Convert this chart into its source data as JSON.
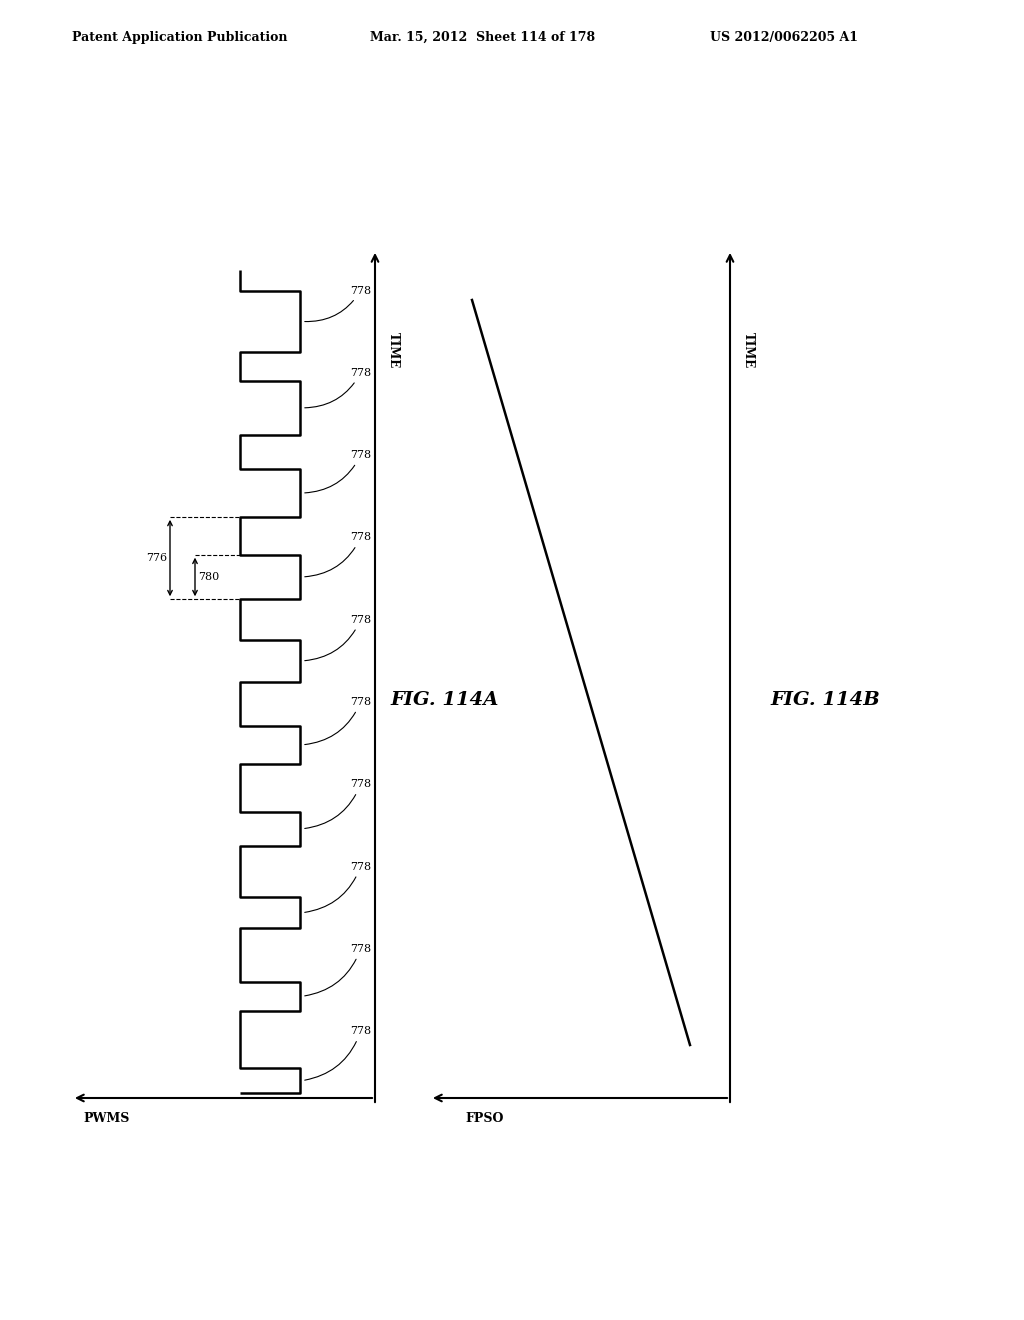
{
  "header_left": "Patent Application Publication",
  "header_mid": "Mar. 15, 2012  Sheet 114 of 178",
  "header_right": "US 2012/0062205 A1",
  "fig_a_label": "FIG. 114A",
  "fig_b_label": "FIG. 114B",
  "pwms_label": "PWMS",
  "fpso_label": "FPSO",
  "time_label": "TIME",
  "label_776": "776",
  "label_778": "778",
  "label_780": "780",
  "bg_color": "#ffffff",
  "line_color": "#000000",
  "duties": [
    0.3,
    0.35,
    0.38,
    0.42,
    0.46,
    0.5,
    0.54,
    0.58,
    0.65,
    0.75
  ]
}
